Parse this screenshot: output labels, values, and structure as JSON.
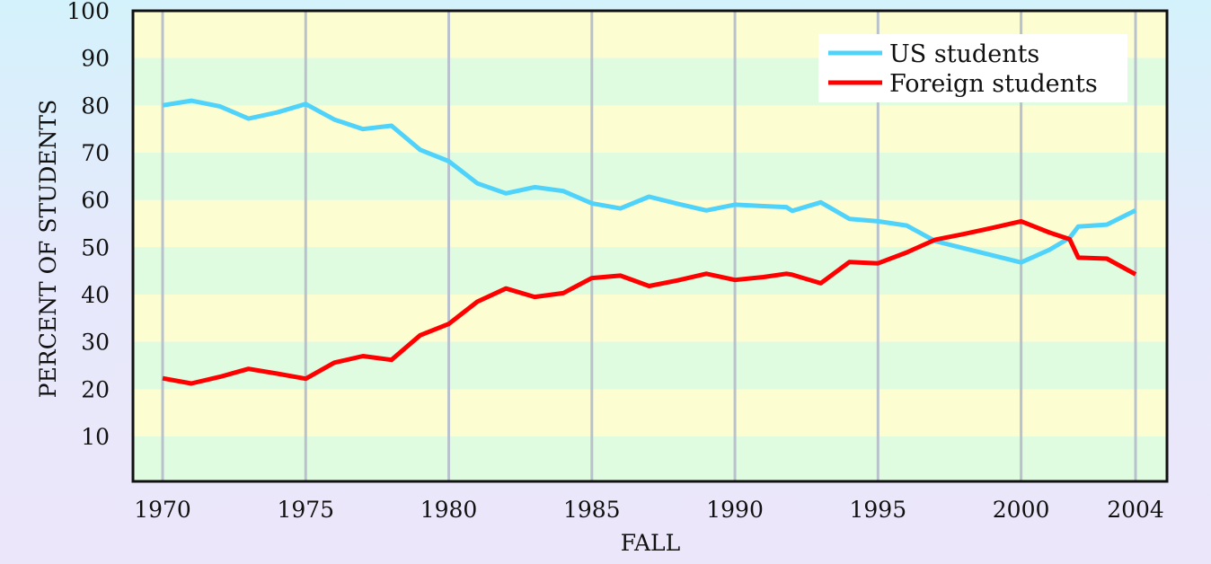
{
  "chart_data": {
    "type": "line",
    "title": "",
    "xlabel": "FALL",
    "ylabel": "PERCENT OF STUDENTS",
    "xlim": [
      1970,
      2004
    ],
    "ylim": [
      0,
      100
    ],
    "x_ticks": [
      1970,
      1975,
      1980,
      1985,
      1990,
      1995,
      2000,
      2004
    ],
    "y_ticks": [
      10,
      20,
      30,
      40,
      50,
      60,
      70,
      80,
      90,
      100
    ],
    "grid": "vertical lines at labeled years; alternating horizontal bands",
    "legend_position": "top-right",
    "band_colors": [
      "#e0fce0",
      "#fdfdd2"
    ],
    "frame_color": "#111111",
    "grid_color": "#b9c2cc",
    "series": [
      {
        "name": "US students",
        "color": "#4fd3fb",
        "points": [
          [
            1970,
            80
          ],
          [
            1971,
            81
          ],
          [
            1972,
            79.8
          ],
          [
            1973,
            77.2
          ],
          [
            1974,
            78.5
          ],
          [
            1975,
            80.3
          ],
          [
            1976,
            77
          ],
          [
            1977,
            75
          ],
          [
            1978,
            75.7
          ],
          [
            1979,
            70.6
          ],
          [
            1980,
            68.2
          ],
          [
            1981,
            63.5
          ],
          [
            1982,
            61.4
          ],
          [
            1983,
            62.7
          ],
          [
            1984,
            61.9
          ],
          [
            1985,
            59.3
          ],
          [
            1986,
            58.2
          ],
          [
            1987,
            60.7
          ],
          [
            1988,
            59.2
          ],
          [
            1989,
            57.8
          ],
          [
            1990,
            59
          ],
          [
            1991,
            58.7
          ],
          [
            1991.8,
            58.5
          ],
          [
            1992,
            57.7
          ],
          [
            1993,
            59.5
          ],
          [
            1994,
            56
          ],
          [
            1995,
            55.5
          ],
          [
            1996,
            54.6
          ],
          [
            1997,
            51.3
          ],
          [
            1998,
            49.8
          ],
          [
            1999,
            48.3
          ],
          [
            2000,
            46.8
          ],
          [
            2001,
            49.5
          ],
          [
            2001.7,
            52
          ],
          [
            2002,
            54.4
          ],
          [
            2003,
            54.8
          ],
          [
            2004,
            57.8
          ]
        ]
      },
      {
        "name": "Foreign students",
        "color": "#ff0000",
        "points": [
          [
            1970,
            22.3
          ],
          [
            1971,
            21.2
          ],
          [
            1972,
            22.6
          ],
          [
            1973,
            24.3
          ],
          [
            1974,
            23.3
          ],
          [
            1975,
            22.2
          ],
          [
            1976,
            25.6
          ],
          [
            1977,
            27
          ],
          [
            1978,
            26.2
          ],
          [
            1979,
            31.4
          ],
          [
            1980,
            33.8
          ],
          [
            1981,
            38.5
          ],
          [
            1982,
            41.3
          ],
          [
            1983,
            39.5
          ],
          [
            1984,
            40.3
          ],
          [
            1985,
            43.5
          ],
          [
            1986,
            44
          ],
          [
            1987,
            41.8
          ],
          [
            1988,
            43
          ],
          [
            1989,
            44.4
          ],
          [
            1990,
            43.1
          ],
          [
            1991,
            43.7
          ],
          [
            1991.8,
            44.4
          ],
          [
            1992,
            44.2
          ],
          [
            1993,
            42.4
          ],
          [
            1994,
            46.9
          ],
          [
            1995,
            46.6
          ],
          [
            1996,
            48.9
          ],
          [
            1997,
            51.6
          ],
          [
            1998,
            52.8
          ],
          [
            1999,
            54.1
          ],
          [
            2000,
            55.5
          ],
          [
            2001,
            53.1
          ],
          [
            2001.7,
            51.7
          ],
          [
            2002,
            47.8
          ],
          [
            2003,
            47.6
          ],
          [
            2004,
            44.3
          ]
        ]
      }
    ]
  }
}
